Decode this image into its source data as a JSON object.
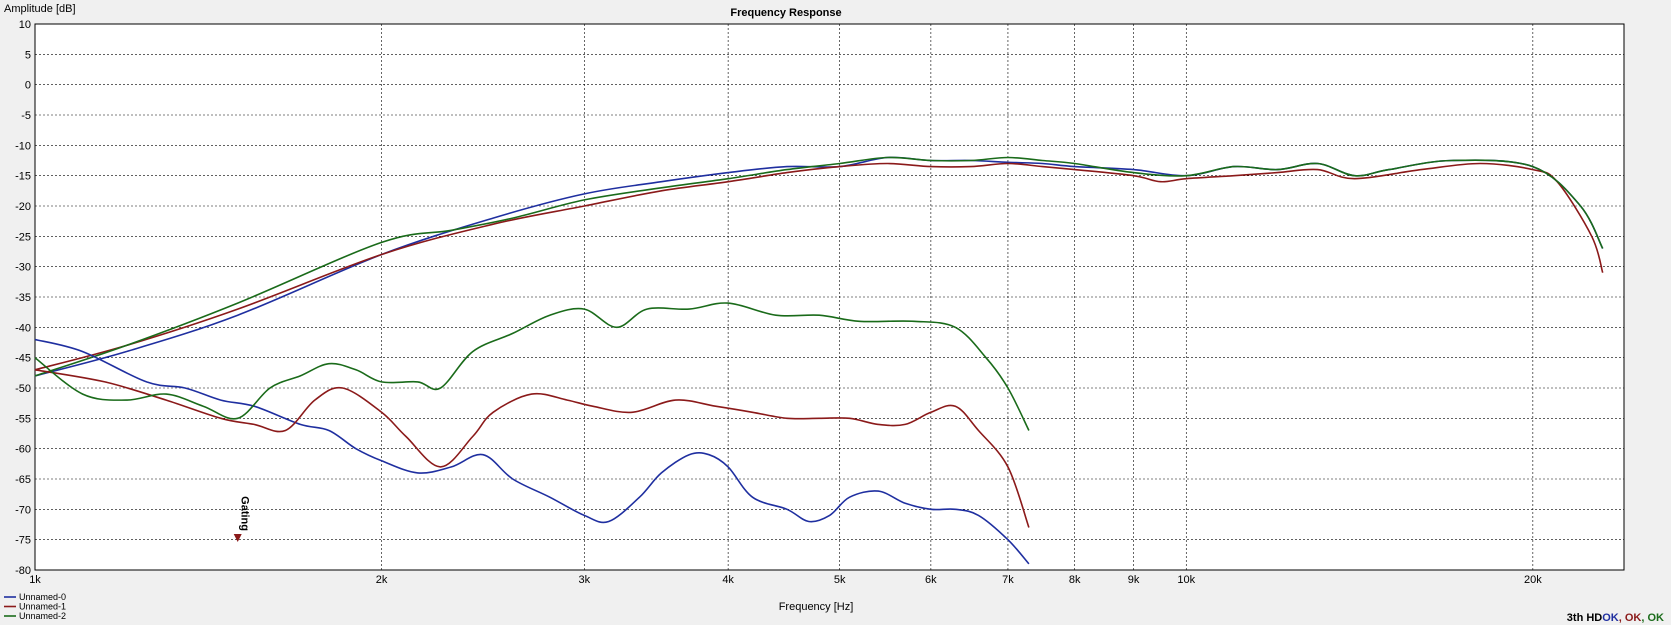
{
  "chart_data": {
    "type": "line",
    "title": "Frequency Response",
    "xlabel": "Frequency [Hz]",
    "ylabel": "Amplitude [dB]",
    "x_scale": "log",
    "xlim": [
      1000,
      24000
    ],
    "ylim": [
      -80,
      10
    ],
    "y_ticks": [
      10,
      5,
      0,
      -5,
      -10,
      -15,
      -20,
      -25,
      -30,
      -35,
      -40,
      -45,
      -50,
      -55,
      -60,
      -65,
      -70,
      -75,
      -80
    ],
    "x_ticks": [
      {
        "value": 1000,
        "label": "1k"
      },
      {
        "value": 2000,
        "label": "2k"
      },
      {
        "value": 3000,
        "label": "3k"
      },
      {
        "value": 4000,
        "label": "4k"
      },
      {
        "value": 5000,
        "label": "5k"
      },
      {
        "value": 6000,
        "label": "6k"
      },
      {
        "value": 7000,
        "label": "7k"
      },
      {
        "value": 8000,
        "label": "8k"
      },
      {
        "value": 9000,
        "label": "9k"
      },
      {
        "value": 10000,
        "label": "10k"
      },
      {
        "value": 20000,
        "label": "20k"
      }
    ],
    "grid": true,
    "legend_position": "bottom-left",
    "annotation": {
      "label": "Gating",
      "x": 1500,
      "color": "#8b1a1a"
    },
    "series": [
      {
        "name": "Unnamed-0",
        "color": "#1f2fa0",
        "points": [
          [
            1000,
            -48
          ],
          [
            1200,
            -44
          ],
          [
            1500,
            -38
          ],
          [
            2000,
            -28
          ],
          [
            2500,
            -22
          ],
          [
            3000,
            -18
          ],
          [
            3500,
            -16
          ],
          [
            4000,
            -14.5
          ],
          [
            4500,
            -13.5
          ],
          [
            5000,
            -13.5
          ],
          [
            5500,
            -12
          ],
          [
            6000,
            -12.5
          ],
          [
            6500,
            -12.5
          ],
          [
            7000,
            -12.8
          ],
          [
            7500,
            -13
          ],
          [
            8000,
            -13.5
          ],
          [
            9000,
            -14
          ],
          [
            10000,
            -15
          ],
          [
            11000,
            -13.5
          ],
          [
            12000,
            -14
          ],
          [
            13000,
            -13
          ],
          [
            14000,
            -15
          ],
          [
            15000,
            -14
          ],
          [
            17000,
            -12.5
          ],
          [
            20000,
            -13.5
          ],
          [
            22000,
            -20
          ],
          [
            23000,
            -27
          ]
        ]
      },
      {
        "name": "Unnamed-1",
        "color": "#8b1a1a",
        "points": [
          [
            1000,
            -47
          ],
          [
            1200,
            -43
          ],
          [
            1500,
            -37
          ],
          [
            2000,
            -28
          ],
          [
            2500,
            -23
          ],
          [
            3000,
            -20
          ],
          [
            3500,
            -17.5
          ],
          [
            4000,
            -16
          ],
          [
            4500,
            -14.5
          ],
          [
            5000,
            -13.5
          ],
          [
            5500,
            -13
          ],
          [
            6000,
            -13.5
          ],
          [
            6500,
            -13.5
          ],
          [
            7000,
            -13
          ],
          [
            7500,
            -13.5
          ],
          [
            8000,
            -14
          ],
          [
            9000,
            -15
          ],
          [
            9500,
            -16
          ],
          [
            10000,
            -15.5
          ],
          [
            11000,
            -15
          ],
          [
            12000,
            -14.5
          ],
          [
            13000,
            -14
          ],
          [
            14000,
            -15.5
          ],
          [
            16000,
            -14
          ],
          [
            18000,
            -13
          ],
          [
            20000,
            -14
          ],
          [
            21000,
            -16
          ],
          [
            22500,
            -25
          ],
          [
            23000,
            -31
          ]
        ]
      },
      {
        "name": "Unnamed-2",
        "color": "#1a6b1a",
        "points": [
          [
            1000,
            -48
          ],
          [
            1200,
            -43
          ],
          [
            1500,
            -36
          ],
          [
            2000,
            -26
          ],
          [
            2300,
            -24
          ],
          [
            2600,
            -22
          ],
          [
            3000,
            -19
          ],
          [
            3500,
            -17
          ],
          [
            4000,
            -15.5
          ],
          [
            4500,
            -14
          ],
          [
            5000,
            -13
          ],
          [
            5500,
            -12
          ],
          [
            6000,
            -12.5
          ],
          [
            6500,
            -12.5
          ],
          [
            7000,
            -12
          ],
          [
            7500,
            -12.5
          ],
          [
            8000,
            -13
          ],
          [
            9000,
            -14.5
          ],
          [
            10000,
            -15
          ],
          [
            11000,
            -13.5
          ],
          [
            12000,
            -14
          ],
          [
            13000,
            -13
          ],
          [
            14000,
            -15
          ],
          [
            15000,
            -14
          ],
          [
            17000,
            -12.5
          ],
          [
            20000,
            -13.5
          ],
          [
            22000,
            -20
          ],
          [
            23000,
            -27
          ]
        ]
      },
      {
        "name": "Unnamed-0",
        "color": "#1f2fa0",
        "points": [
          [
            1000,
            -42
          ],
          [
            1100,
            -44
          ],
          [
            1250,
            -49
          ],
          [
            1350,
            -50
          ],
          [
            1450,
            -52
          ],
          [
            1550,
            -53
          ],
          [
            1700,
            -56
          ],
          [
            1800,
            -57
          ],
          [
            1900,
            -60
          ],
          [
            2000,
            -62
          ],
          [
            2150,
            -64
          ],
          [
            2300,
            -63
          ],
          [
            2450,
            -61
          ],
          [
            2600,
            -65
          ],
          [
            2800,
            -68
          ],
          [
            3000,
            -71
          ],
          [
            3150,
            -72
          ],
          [
            3350,
            -68
          ],
          [
            3500,
            -64
          ],
          [
            3700,
            -61
          ],
          [
            3850,
            -61
          ],
          [
            4000,
            -63
          ],
          [
            4200,
            -68
          ],
          [
            4500,
            -70
          ],
          [
            4700,
            -72
          ],
          [
            4900,
            -71
          ],
          [
            5100,
            -68
          ],
          [
            5400,
            -67
          ],
          [
            5700,
            -69
          ],
          [
            6000,
            -70
          ],
          [
            6300,
            -70
          ],
          [
            6600,
            -71
          ],
          [
            7000,
            -75
          ],
          [
            7300,
            -79
          ]
        ]
      },
      {
        "name": "Unnamed-1",
        "color": "#8b1a1a",
        "points": [
          [
            1000,
            -47
          ],
          [
            1150,
            -49
          ],
          [
            1300,
            -52
          ],
          [
            1450,
            -55
          ],
          [
            1550,
            -56
          ],
          [
            1650,
            -57
          ],
          [
            1750,
            -52
          ],
          [
            1850,
            -50
          ],
          [
            2000,
            -54
          ],
          [
            2100,
            -58
          ],
          [
            2250,
            -63
          ],
          [
            2400,
            -58
          ],
          [
            2500,
            -54
          ],
          [
            2700,
            -51
          ],
          [
            2900,
            -52
          ],
          [
            3050,
            -53
          ],
          [
            3300,
            -54
          ],
          [
            3600,
            -52
          ],
          [
            3900,
            -53
          ],
          [
            4200,
            -54
          ],
          [
            4500,
            -55
          ],
          [
            4800,
            -55
          ],
          [
            5100,
            -55
          ],
          [
            5400,
            -56
          ],
          [
            5700,
            -56
          ],
          [
            6000,
            -54
          ],
          [
            6300,
            -53
          ],
          [
            6600,
            -57
          ],
          [
            7000,
            -63
          ],
          [
            7300,
            -73
          ]
        ]
      },
      {
        "name": "Unnamed-2",
        "color": "#1a6b1a",
        "points": [
          [
            1000,
            -45
          ],
          [
            1100,
            -51
          ],
          [
            1200,
            -52
          ],
          [
            1300,
            -51
          ],
          [
            1400,
            -53
          ],
          [
            1500,
            -55
          ],
          [
            1600,
            -50
          ],
          [
            1700,
            -48
          ],
          [
            1800,
            -46
          ],
          [
            1900,
            -47
          ],
          [
            2000,
            -49
          ],
          [
            2150,
            -49
          ],
          [
            2250,
            -50
          ],
          [
            2400,
            -44
          ],
          [
            2600,
            -41
          ],
          [
            2800,
            -38
          ],
          [
            3000,
            -37
          ],
          [
            3200,
            -40
          ],
          [
            3400,
            -37
          ],
          [
            3700,
            -37
          ],
          [
            4000,
            -36
          ],
          [
            4400,
            -38
          ],
          [
            4800,
            -38
          ],
          [
            5200,
            -39
          ],
          [
            5800,
            -39
          ],
          [
            6300,
            -40
          ],
          [
            6700,
            -45
          ],
          [
            7000,
            -50
          ],
          [
            7300,
            -57
          ]
        ]
      }
    ]
  },
  "legend": [
    "Unnamed-0",
    "Unnamed-1",
    "Unnamed-2"
  ],
  "status": {
    "prefix": "3th HD",
    "items": [
      {
        "text": "OK",
        "color": "#1f2fa0"
      },
      {
        "text": "OK",
        "color": "#8b1a1a"
      },
      {
        "text": "OK",
        "color": "#1a6b1a"
      }
    ]
  }
}
